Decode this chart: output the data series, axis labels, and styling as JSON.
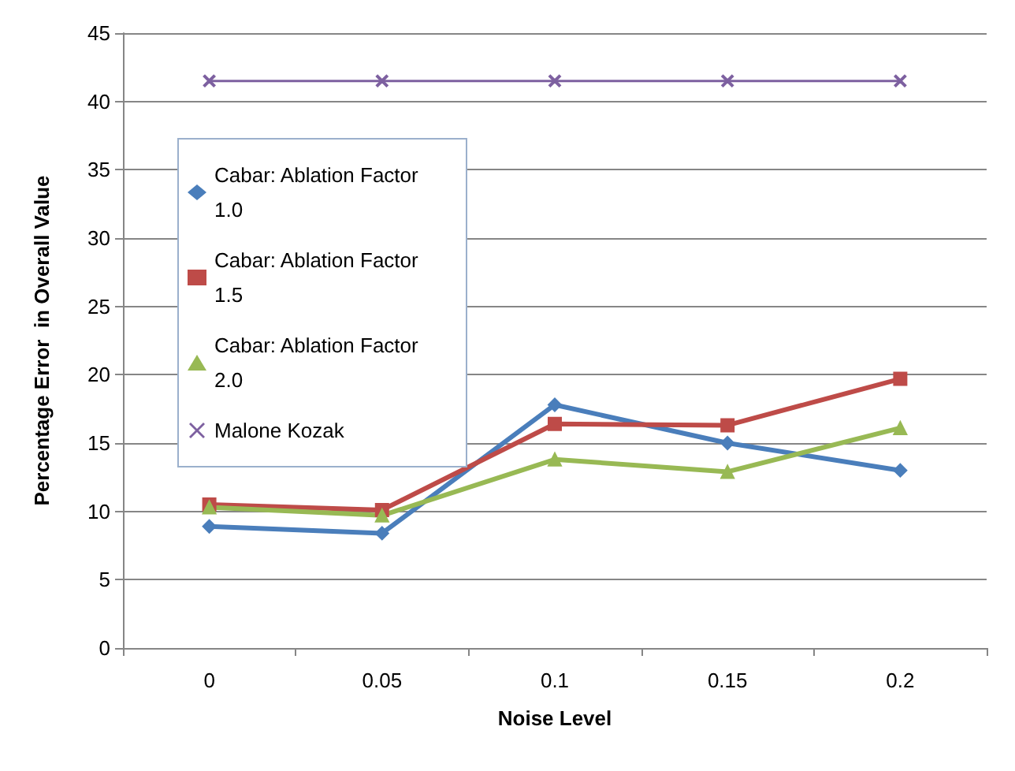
{
  "chart_data": {
    "type": "line",
    "xlabel": "Noise Level",
    "ylabel": "Percentage Error  in Overall Value",
    "categories": [
      "0",
      "0.05",
      "0.1",
      "0.15",
      "0.2"
    ],
    "ylim": [
      0,
      45
    ],
    "yticks": [
      0,
      5,
      10,
      15,
      20,
      25,
      30,
      35,
      40,
      45
    ],
    "grid": "y",
    "legend": "top left",
    "series": [
      {
        "name": "Cabar: Ablation Factor 1.0",
        "color": "#4a7ebb",
        "marker": "diamond",
        "values": [
          8.9,
          8.4,
          17.8,
          15.0,
          13.0
        ]
      },
      {
        "name": "Cabar: Ablation Factor 1.5",
        "color": "#be4b48",
        "marker": "square",
        "values": [
          10.5,
          10.1,
          16.4,
          16.3,
          19.7
        ]
      },
      {
        "name": "Cabar: Ablation Factor 2.0",
        "color": "#98b954",
        "marker": "triangle",
        "values": [
          10.3,
          9.7,
          13.8,
          12.9,
          16.1
        ]
      },
      {
        "name": "Malone Kozak",
        "color": "#7d60a0",
        "marker": "cross",
        "values": [
          41.5,
          41.5,
          41.5,
          41.5,
          41.5
        ]
      }
    ]
  }
}
